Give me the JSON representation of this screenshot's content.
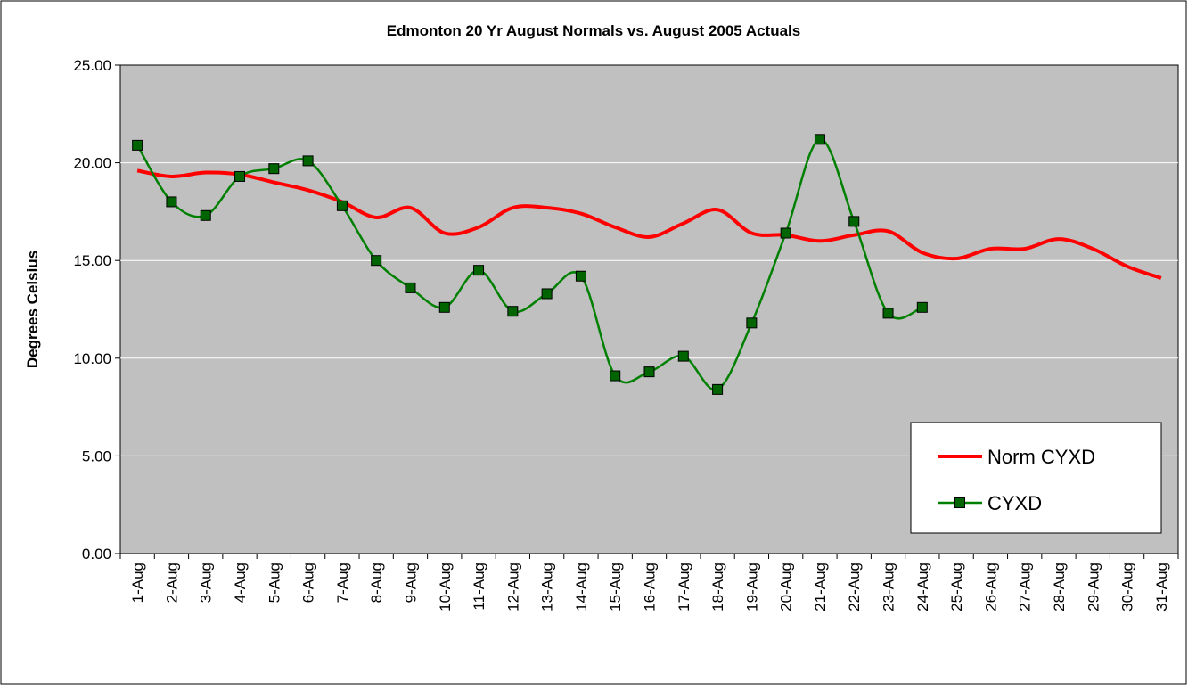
{
  "chart_data": {
    "type": "line",
    "title": "Edmonton 20 Yr August Normals vs. August 2005 Actuals",
    "y_label": "Degrees Celsius",
    "categories": [
      "1-Aug",
      "2-Aug",
      "3-Aug",
      "4-Aug",
      "5-Aug",
      "6-Aug",
      "7-Aug",
      "8-Aug",
      "9-Aug",
      "10-Aug",
      "11-Aug",
      "12-Aug",
      "13-Aug",
      "14-Aug",
      "15-Aug",
      "16-Aug",
      "17-Aug",
      "18-Aug",
      "19-Aug",
      "20-Aug",
      "21-Aug",
      "22-Aug",
      "23-Aug",
      "24-Aug",
      "25-Aug",
      "26-Aug",
      "27-Aug",
      "28-Aug",
      "29-Aug",
      "30-Aug",
      "31-Aug"
    ],
    "series": [
      {
        "name": "Norm CYXD",
        "color": "#ff0000",
        "marker": "none",
        "values": [
          19.6,
          19.3,
          19.5,
          19.4,
          19.0,
          18.6,
          18.0,
          17.2,
          17.7,
          16.4,
          16.7,
          17.7,
          17.7,
          17.4,
          16.7,
          16.2,
          16.9,
          17.6,
          16.4,
          16.3,
          16.0,
          16.3,
          16.5,
          15.4,
          15.1,
          15.6,
          15.6,
          16.1,
          15.6,
          14.7,
          14.1
        ]
      },
      {
        "name": "CYXD",
        "color": "#008000",
        "marker": "square",
        "marker_color": "#006400",
        "values": [
          20.9,
          18.0,
          17.3,
          19.3,
          19.7,
          20.1,
          17.8,
          15.0,
          13.6,
          12.6,
          14.5,
          12.4,
          13.3,
          14.2,
          9.1,
          9.3,
          10.1,
          8.4,
          11.8,
          16.4,
          21.2,
          17.0,
          12.3,
          12.6,
          null,
          null,
          null,
          null,
          null,
          null,
          null
        ]
      }
    ],
    "ylim": [
      0,
      25
    ],
    "yticks": [
      {
        "value": 0,
        "label": "0.00"
      },
      {
        "value": 5,
        "label": "5.00"
      },
      {
        "value": 10,
        "label": "10.00"
      },
      {
        "value": 15,
        "label": "15.00"
      },
      {
        "value": 20,
        "label": "20.00"
      },
      {
        "value": 25,
        "label": "25.00"
      }
    ],
    "grid": true,
    "smooth": true,
    "legend": "lower right"
  }
}
